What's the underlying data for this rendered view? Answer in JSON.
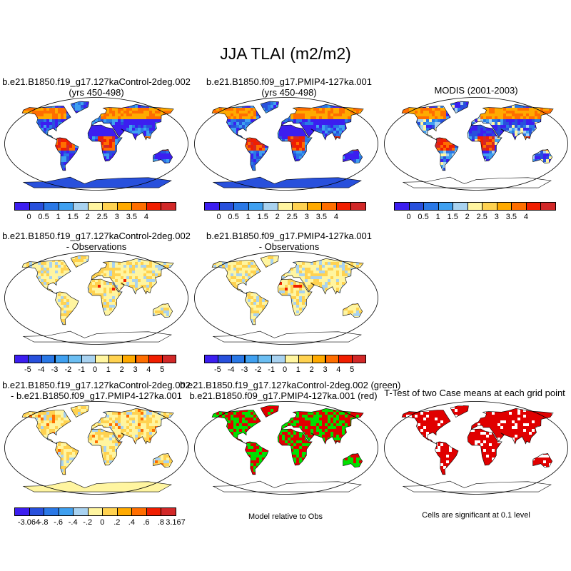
{
  "title": "JJA TLAI (m2/m2)",
  "panels": [
    {
      "id": "p1",
      "title_line1": "b.e21.B1850.f19_g17.127kaControl-2deg.002",
      "title_line2": "(yrs 450-498)",
      "field": "abs"
    },
    {
      "id": "p2",
      "title_line1": "b.e21.B1850.f09_g17.PMIP4-127ka.001",
      "title_line2": "(yrs 450-498)",
      "field": "abs"
    },
    {
      "id": "p3",
      "title_line1": "MODIS (2001-2003)",
      "title_line2": "",
      "field": "obs"
    },
    {
      "id": "p4",
      "title_line1": "b.e21.B1850.f19_g17.127kaControl-2deg.002",
      "title_line2": "- Observations",
      "field": "diff"
    },
    {
      "id": "p5",
      "title_line1": "b.e21.B1850.f09_g17.PMIP4-127ka.001",
      "title_line2": "- Observations",
      "field": "diff"
    },
    {
      "id": "p6",
      "title_line1": "b.e21.B1850.f19_g17.127kaControl-2deg.002",
      "title_line2": "- b.e21.B1850.f09_g17.PMIP4-127ka.001",
      "field": "diff2"
    },
    {
      "id": "p7",
      "title_line1": "b.e21.B1850.f19_g17.127kaControl-2deg.002 (green)",
      "title_line2": "b.e21.B1850.f09_g17.PMIP4-127ka.001 (red)",
      "field": "rg"
    },
    {
      "id": "p8",
      "title_line1": "T-Test of two Case means at each grid point",
      "title_line2": "",
      "field": "sig"
    }
  ],
  "colorbars": {
    "abs": {
      "labels": [
        "0",
        "0.5",
        "1",
        "1.5",
        "2",
        "2.5",
        "3",
        "3.5",
        "4"
      ],
      "colors": [
        "#3c1ef0",
        "#2850dc",
        "#2a78e6",
        "#3fa0f0",
        "#a8d2f0",
        "#fff5a0",
        "#ffd250",
        "#ffaa00",
        "#ff6e00",
        "#f01e00",
        "#d22828"
      ]
    },
    "diff": {
      "labels": [
        "-5",
        "-4",
        "-3",
        "-2",
        "-1",
        "0",
        "1",
        "2",
        "3",
        "4",
        "5"
      ],
      "colors": [
        "#3c1ef0",
        "#2850dc",
        "#2a78e6",
        "#3fa0f0",
        "#6bbef2",
        "#a8d2f0",
        "#fff5a0",
        "#ffd250",
        "#ffaa00",
        "#ff6e00",
        "#f01e00",
        "#d22828"
      ]
    },
    "diff2": {
      "labels": [
        "-3.064",
        "-.8",
        "-.6",
        "-.4",
        "-.2",
        "0",
        ".2",
        ".4",
        ".6",
        ".8",
        "3.167"
      ],
      "colors": [
        "#3c1ef0",
        "#2850dc",
        "#2a78e6",
        "#3fa0f0",
        "#a8d2f0",
        "#fff5a0",
        "#ffd250",
        "#ffaa00",
        "#ff6e00",
        "#f01e00",
        "#d22828"
      ]
    }
  },
  "notes": {
    "model_relative": "Model relative to Obs",
    "significance": "Cells are significant at 0.1 level"
  }
}
